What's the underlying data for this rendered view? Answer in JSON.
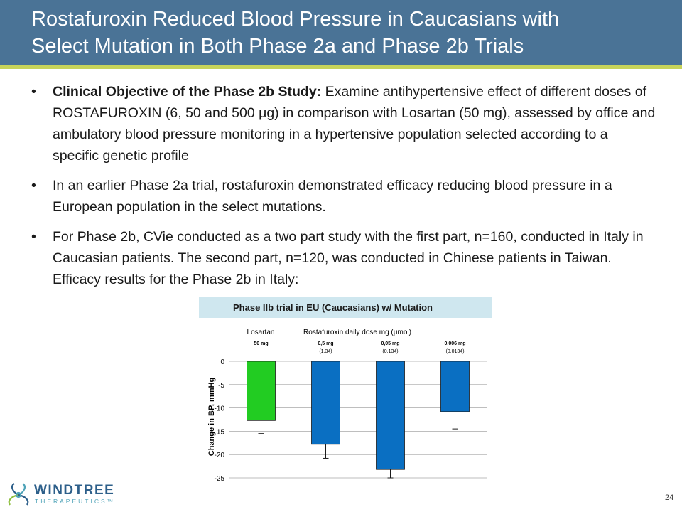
{
  "slide": {
    "title_line1": "Rostafuroxin Reduced Blood Pressure in Caucasians with",
    "title_line2": "Select Mutation in Both Phase 2a and Phase 2b Trials",
    "page_number": "24"
  },
  "bullets": [
    {
      "bold": "Clinical Objective of the Phase 2b Study:",
      "text": " Examine antihypertensive effect of different doses of ROSTAFUROXIN (6, 50 and 500 μg) in comparison with Losartan (50 mg), assessed by office and ambulatory blood pressure monitoring in a hypertensive population selected according to a specific genetic profile"
    },
    {
      "bold": "",
      "text": "In an earlier Phase 2a trial, rostafuroxin demonstrated efficacy reducing blood pressure in a European population in the select mutations."
    },
    {
      "bold": "",
      "text": "For Phase 2b, CVie conducted as a two part study with the first part, n=160, conducted in Italy in Caucasian patients.  The second part, n=120, was conducted in Chinese patients in Taiwan. Efficacy results for the Phase 2b in Italy:"
    }
  ],
  "chart_data": {
    "type": "bar",
    "title": "Phase IIb trial in EU (Caucasians) w/ Mutation",
    "group_label_losartan": "Losartan",
    "group_label_rosta": "Rostafuroxin daily dose mg (μmol)",
    "categories": [
      "50 mg",
      "0,5 mg",
      "0,05 mg",
      "0,006 mg"
    ],
    "sublabels": [
      "",
      "(1,34)",
      "(0,134)",
      "(0,0134)"
    ],
    "values": [
      -12.7,
      -17.8,
      -23.2,
      -10.8
    ],
    "errors": [
      2.8,
      3.0,
      1.8,
      3.7
    ],
    "colors": [
      "#22cc22",
      "#0a6fc2",
      "#0a6fc2",
      "#0a6fc2"
    ],
    "ylabel": "Change in BP, mmHg",
    "ylim": [
      -25,
      0
    ],
    "yticks": [
      "0",
      "-5",
      "-10",
      "-15",
      "-20",
      "-25"
    ],
    "grid": true
  },
  "brand": {
    "name": "WINDTREE",
    "tagline": "THERAPEUTICS™",
    "icon": "windtree-tree-logo-icon"
  }
}
